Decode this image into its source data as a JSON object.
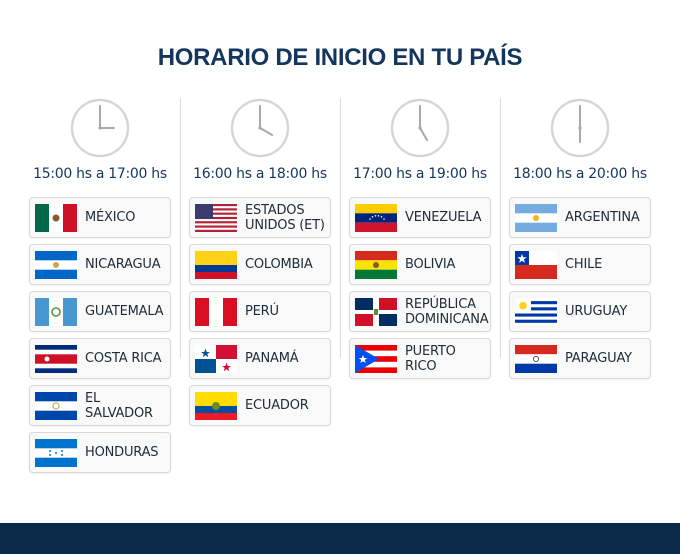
{
  "title": "HORARIO DE INICIO EN TU PAÍS",
  "colors": {
    "navy": "#0b2a4a",
    "title": "#14365c",
    "card_bg": "#f9f9f9",
    "clock": "#d5d5d5"
  },
  "columns": [
    {
      "time": "15:00 hs a 17:00 hs",
      "clock_hour": 3,
      "countries": [
        {
          "name": "MÉXICO",
          "flag": "mexico"
        },
        {
          "name": "NICARAGUA",
          "flag": "nicaragua"
        },
        {
          "name": "GUATEMALA",
          "flag": "guatemala"
        },
        {
          "name": "COSTA RICA",
          "flag": "costa-rica"
        },
        {
          "name": "EL SALVADOR",
          "flag": "el-salvador"
        },
        {
          "name": "HONDURAS",
          "flag": "honduras"
        }
      ]
    },
    {
      "time": "16:00 hs a 18:00 hs",
      "clock_hour": 4,
      "countries": [
        {
          "name": "ESTADOS\nUNIDOS (ET)",
          "flag": "usa"
        },
        {
          "name": "COLOMBIA",
          "flag": "colombia"
        },
        {
          "name": "PERÚ",
          "flag": "peru"
        },
        {
          "name": "PANAMÁ",
          "flag": "panama"
        },
        {
          "name": "ECUADOR",
          "flag": "ecuador"
        }
      ]
    },
    {
      "time": "17:00 hs a 19:00 hs",
      "clock_hour": 5,
      "countries": [
        {
          "name": "VENEZUELA",
          "flag": "venezuela"
        },
        {
          "name": "BOLIVIA",
          "flag": "bolivia"
        },
        {
          "name": "REPÚBLICA\nDOMINICANA",
          "flag": "dominican-republic"
        },
        {
          "name": "PUERTO\nRICO",
          "flag": "puerto-rico"
        }
      ]
    },
    {
      "time": "18:00 hs a 20:00 hs",
      "clock_hour": 6,
      "countries": [
        {
          "name": "ARGENTINA",
          "flag": "argentina"
        },
        {
          "name": "CHILE",
          "flag": "chile"
        },
        {
          "name": "URUGUAY",
          "flag": "uruguay"
        },
        {
          "name": "PARAGUAY",
          "flag": "paraguay"
        }
      ]
    }
  ]
}
